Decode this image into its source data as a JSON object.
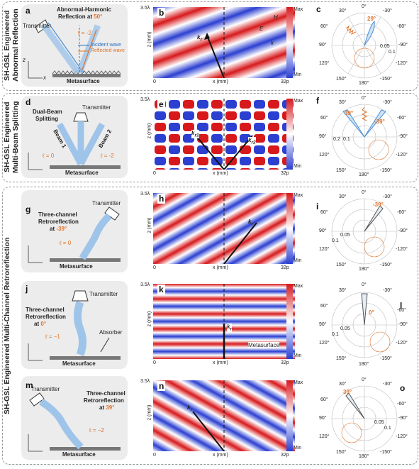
{
  "groups": {
    "row1": "SH-GSL Engineered Abnormal Reflection",
    "row2": "SH-GSL Engineered Multi-Beam Splitting",
    "rows3to5": "SH-GSL Engineered Multi-Channel Retroreflection"
  },
  "common": {
    "metasurface": "Metasurface",
    "transmitter": "Transmitter",
    "x_axis": "x (mm)",
    "z_axis": "z (mm)",
    "x0": "0",
    "x_end": "32p",
    "z_top": "3.5λ",
    "cbar_max": "Max",
    "cbar_min": "Min",
    "polar_angles": [
      "0°",
      "30°",
      "-30°",
      "60°",
      "-60°",
      "90°",
      "-90°",
      "120°",
      "-120°",
      "150°",
      "-150°",
      "180°"
    ],
    "z_letter": "z",
    "x_letter": "x"
  },
  "panels": {
    "a": {
      "label": "a",
      "title_line1": "Abnormal-Harmonic",
      "title_line2": "Reflection at ",
      "angle": "50°",
      "ell": "ℓ = -2",
      "legend_incident": "Incident wave",
      "legend_reflected": "Reflected wave"
    },
    "b": {
      "label": "b",
      "kr": "k",
      "kr_sub": "r",
      "E": "E",
      "H": "H",
      "k": "k"
    },
    "c": {
      "label": "c",
      "angle": "29°",
      "ticks": [
        "0.05",
        "0.1"
      ]
    },
    "d": {
      "label": "d",
      "title_line1": "Dual-Beam",
      "title_line2": "Splitting",
      "beam1": "Beam 1",
      "beam2": "Beam 2",
      "ell_left": "ℓ = 0",
      "ell_right": "ℓ = -2"
    },
    "e": {
      "label": "e",
      "kr1": "k",
      "kr1_sub": "r1",
      "kr2": "k",
      "kr2_sub": "r2"
    },
    "f": {
      "label": "f",
      "angle_left": "39°",
      "angle_right": "-39°",
      "ticks": [
        "0.1",
        "0.2"
      ]
    },
    "g": {
      "label": "g",
      "title_line1": "Three-channel",
      "title_line2": "Retroreflection",
      "title_line3": "at ",
      "angle": "-39°",
      "ell": "ℓ = 0"
    },
    "h": {
      "label": "h",
      "kr": "k",
      "kr_sub": "r"
    },
    "i": {
      "label": "i",
      "angle": "-39°",
      "ticks": [
        "0.05",
        "0.1"
      ]
    },
    "j": {
      "label": "j",
      "title_line1": "Three-channel",
      "title_line2": "Retroreflection",
      "title_line3": "at ",
      "angle": "0°",
      "ell": "ℓ = −1",
      "absorber": "Absorber"
    },
    "k": {
      "label": "k",
      "kr": "k",
      "kr_sub": "r",
      "metasurface_label": "Metasurface"
    },
    "l": {
      "label": "l",
      "angle": "0°",
      "ticks": [
        "0.05",
        "0.1"
      ]
    },
    "m": {
      "label": "m",
      "title_line1": "Three-channel",
      "title_line2": "Retroreflection",
      "title_line3": "at ",
      "angle": "39°",
      "ell": "ℓ = −2"
    },
    "n": {
      "label": "n",
      "kr": "k",
      "kr_sub": "r"
    },
    "o": {
      "label": "o",
      "angle": "39°",
      "ticks": [
        "0.05",
        "0.1"
      ]
    }
  },
  "colors": {
    "accent_orange": "#e0732a",
    "beam_blue": "#4a8fd6",
    "field_red": "#d7191c",
    "field_blue": "#2b3fd1"
  }
}
